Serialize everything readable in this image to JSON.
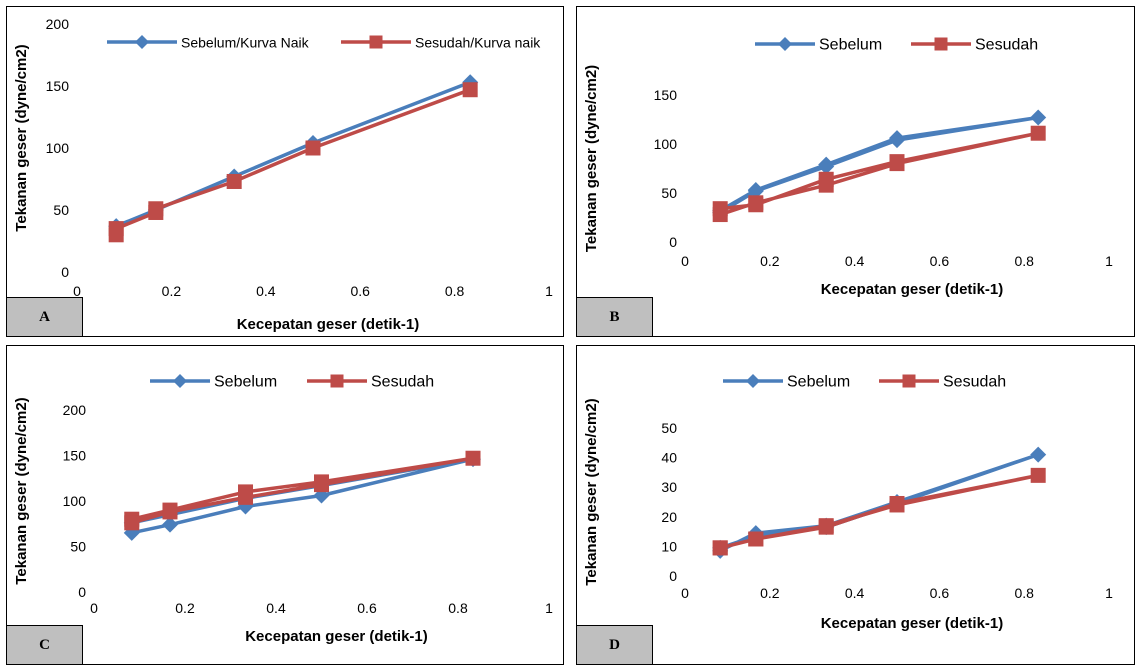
{
  "colors": {
    "sebelum": "#4a7ebb",
    "sesudah": "#be4b48"
  },
  "chart_data": [
    {
      "panel": "A",
      "type": "line",
      "xlabel": "Kecepatan geser (detik-1)",
      "ylabel": "Tekanan geser (dyne/cm2)",
      "xlim": [
        0,
        1
      ],
      "ylim": [
        0,
        200
      ],
      "xticks": [
        "0",
        "0.2",
        "0.4",
        "0.6",
        "0.8",
        "1"
      ],
      "yticks": [
        "0",
        "50",
        "100",
        "150",
        "200"
      ],
      "legend": "top",
      "series": [
        {
          "name": "Sebelum/Kurva Naik",
          "x": [
            0.083,
            0.167,
            0.333,
            0.5,
            0.833
          ],
          "y": [
            37,
            50,
            77,
            104,
            153
          ]
        },
        {
          "name": "Sesudah/Kurva naik",
          "x": [
            0.083,
            0.083,
            0.167,
            0.167,
            0.333,
            0.5,
            0.833
          ],
          "y": [
            30,
            35,
            48,
            51,
            73,
            100,
            147
          ]
        }
      ]
    },
    {
      "panel": "B",
      "type": "line",
      "xlabel": "Kecepatan geser (detik-1)",
      "ylabel": "Tekanan geser (dyne/cm2)",
      "xlim": [
        0,
        1
      ],
      "ylim": [
        0,
        150
      ],
      "xticks": [
        "0",
        "0.2",
        "0.4",
        "0.6",
        "0.8",
        "1"
      ],
      "yticks": [
        "0",
        "50",
        "100",
        "150"
      ],
      "legend": "top",
      "series": [
        {
          "name": "Sebelum",
          "x": [
            0.083,
            0.167,
            0.333,
            0.5,
            0.833,
            0.5,
            0.333,
            0.167,
            0.083
          ],
          "y": [
            32,
            53,
            79,
            106,
            127,
            104,
            77,
            52,
            30
          ]
        },
        {
          "name": "Sesudah",
          "x": [
            0.083,
            0.167,
            0.333,
            0.5,
            0.833,
            0.5,
            0.333,
            0.167,
            0.083
          ],
          "y": [
            28,
            40,
            58,
            80,
            111,
            82,
            64,
            38,
            34
          ]
        }
      ]
    },
    {
      "panel": "C",
      "type": "line",
      "xlabel": "Kecepatan geser (detik-1)",
      "ylabel": "Tekanan geser (dyne/cm2)",
      "xlim": [
        0,
        1
      ],
      "ylim": [
        0,
        200
      ],
      "xticks": [
        "0",
        "0.2",
        "0.4",
        "0.6",
        "0.8",
        "1"
      ],
      "yticks": [
        "0",
        "50",
        "100",
        "150",
        "200"
      ],
      "legend": "top",
      "series": [
        {
          "name": "Sebelum",
          "x": [
            0.083,
            0.167,
            0.333,
            0.5,
            0.833,
            0.5,
            0.333,
            0.167,
            0.083
          ],
          "y": [
            65,
            74,
            94,
            106,
            146,
            117,
            103,
            85,
            76
          ]
        },
        {
          "name": "Sesudah",
          "x": [
            0.083,
            0.167,
            0.333,
            0.5,
            0.833,
            0.5,
            0.333,
            0.167,
            0.083
          ],
          "y": [
            80,
            90,
            110,
            121,
            147,
            118,
            104,
            88,
            76
          ]
        }
      ]
    },
    {
      "panel": "D",
      "type": "line",
      "xlabel": "Kecepatan geser (detik-1)",
      "ylabel": "Tekanan geser (dyne/cm2)",
      "xlim": [
        0,
        1
      ],
      "ylim": [
        0,
        50
      ],
      "xticks": [
        "0",
        "0.2",
        "0.4",
        "0.6",
        "0.8",
        "1"
      ],
      "yticks": [
        "0",
        "10",
        "20",
        "30",
        "40",
        "50"
      ],
      "legend": "top",
      "series": [
        {
          "name": "Sebelum",
          "x": [
            0.083,
            0.167,
            0.333,
            0.5,
            0.833,
            0.5,
            0.333,
            0.167,
            0.083
          ],
          "y": [
            8.5,
            14.5,
            17,
            25,
            41,
            24.5,
            16.5,
            13.5,
            9.5
          ]
        },
        {
          "name": "Sesudah",
          "x": [
            0.083,
            0.167,
            0.333,
            0.5,
            0.833,
            0.5,
            0.333,
            0.167,
            0.083
          ],
          "y": [
            9.5,
            12.5,
            17,
            24,
            34,
            24.5,
            16.5,
            12.5,
            9.5
          ]
        }
      ]
    }
  ]
}
